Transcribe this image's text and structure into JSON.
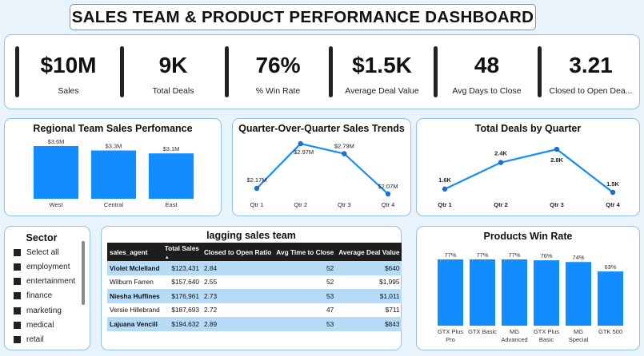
{
  "dashboard_title": "SALES TEAM & PRODUCT PERFORMANCE DASHBOARD",
  "kpis": [
    {
      "value": "$10M",
      "label": "Sales"
    },
    {
      "value": "9K",
      "label": "Total Deals"
    },
    {
      "value": "76%",
      "label": "% Win Rate"
    },
    {
      "value": "$1.5K",
      "label": "Average Deal Value"
    },
    {
      "value": "48",
      "label": "Avg Days to Close"
    },
    {
      "value": "3.21",
      "label": "Closed to Open Dea..."
    }
  ],
  "regional": {
    "title": "Regional Team Sales Perfomance",
    "chart_data": {
      "type": "bar",
      "title": "Regional Team Sales Perfomance",
      "categories": [
        "West",
        "Central",
        "East"
      ],
      "values": [
        3.6,
        3.3,
        3.1
      ],
      "value_labels": [
        "$3.6M",
        "$3.3M",
        "$3.1M"
      ],
      "unit": "$M",
      "color": "#118dff"
    }
  },
  "qoq": {
    "title": "Quarter-Over-Quarter Sales Trends",
    "chart_data": {
      "type": "line",
      "title": "Quarter-Over-Quarter Sales Trends",
      "categories": [
        "Qtr 1",
        "Qtr 2",
        "Qtr 3",
        "Qtr 4"
      ],
      "values": [
        2.17,
        2.97,
        2.79,
        2.07
      ],
      "value_labels": [
        "$2.17M",
        "$2.97M",
        "$2.79M",
        "$2.07M"
      ],
      "unit": "$M",
      "color": "#118dff"
    }
  },
  "deals_q": {
    "title": "Total Deals by Quarter",
    "chart_data": {
      "type": "line",
      "title": "Total Deals by Quarter",
      "categories": [
        "Qtr 1",
        "Qtr 2",
        "Qtr 3",
        "Qtr 4"
      ],
      "values": [
        1.6,
        2.4,
        2.8,
        1.5
      ],
      "value_labels": [
        "1.6K",
        "2.4K",
        "2.8K",
        "1.5K"
      ],
      "unit": "K",
      "color": "#118dff"
    }
  },
  "sector": {
    "title": "Sector",
    "items": [
      "Select all",
      "employment",
      "entertainment",
      "finance",
      "marketing",
      "medical",
      "retail"
    ]
  },
  "lagging": {
    "title": "lagging sales team",
    "columns": [
      "sales_agent",
      "Total Sales",
      "Closed to Open Ratio",
      "Avg Time to Close",
      "Average Deal Value"
    ],
    "sort_indicator": "▲",
    "rows": [
      [
        "Violet Mclelland",
        "$123,431",
        "2.84",
        "52",
        "$640"
      ],
      [
        "Wilburn Farren",
        "$157,640",
        "2.55",
        "52",
        "$1,995"
      ],
      [
        "Niesha Huffines",
        "$176,961",
        "2.73",
        "53",
        "$1,011"
      ],
      [
        "Versie Hillebrand",
        "$187,693",
        "2.72",
        "47",
        "$711"
      ],
      [
        "Lajuana Vencill",
        "$194,632",
        "2.89",
        "53",
        "$843"
      ]
    ]
  },
  "winrate": {
    "title": "Products Win Rate",
    "chart_data": {
      "type": "bar",
      "title": "Products Win Rate",
      "categories": [
        "GTX Plus Pro",
        "GTX Basic",
        "MG Advanced",
        "GTX Plus Basic",
        "MG Special",
        "GTK 500"
      ],
      "category_lines": [
        [
          "GTX Plus",
          "Pro"
        ],
        [
          "GTX Basic"
        ],
        [
          "MG",
          "Advanced"
        ],
        [
          "GTX Plus",
          "Basic"
        ],
        [
          "MG",
          "Special"
        ],
        [
          "GTK 500"
        ]
      ],
      "values": [
        77,
        77,
        77,
        76,
        74,
        63
      ],
      "value_labels": [
        "77%",
        "77%",
        "77%",
        "76%",
        "74%",
        "63%"
      ],
      "unit": "%",
      "color": "#118dff"
    }
  }
}
